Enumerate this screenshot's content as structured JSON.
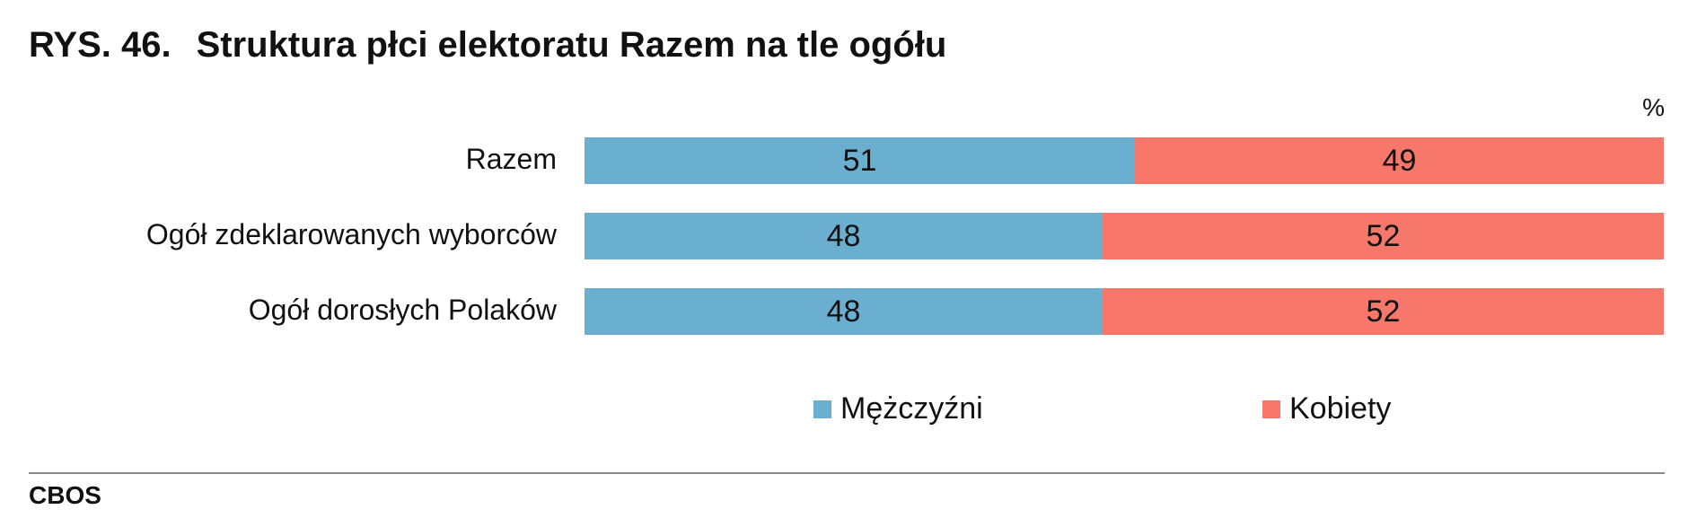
{
  "figure": {
    "number": "RYS. 46.",
    "title": "Struktura płci elektoratu Razem na tle ogółu",
    "unit": "%",
    "source": "CBOS"
  },
  "colors": {
    "men": "#6aaed0",
    "women": "#f7776b"
  },
  "chart_data": {
    "type": "bar",
    "orientation": "horizontal",
    "stacked": true,
    "categories": [
      "Razem",
      "Ogół zdeklarowanych wyborców",
      "Ogół dorosłych Polaków"
    ],
    "series": [
      {
        "name": "Mężczyźni",
        "values": [
          51,
          48,
          48
        ]
      },
      {
        "name": "Kobiety",
        "values": [
          49,
          52,
          52
        ]
      }
    ],
    "xlim": [
      0,
      100
    ],
    "legend": "bottom",
    "grid": false
  }
}
